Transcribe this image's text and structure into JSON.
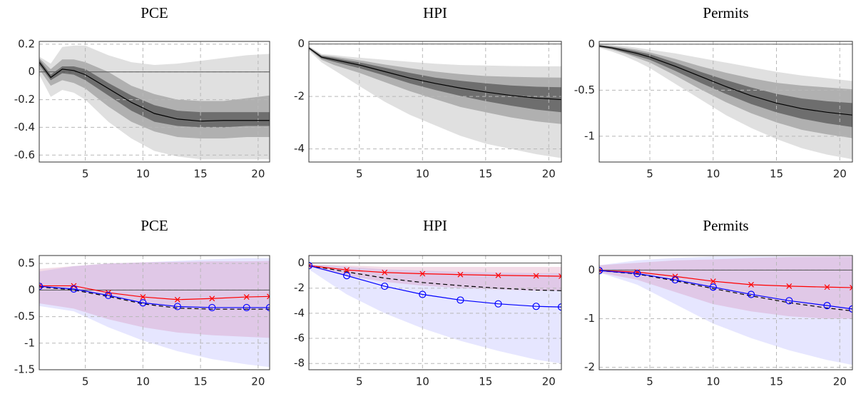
{
  "chart_data": [
    {
      "type": "line",
      "title": "PCE",
      "x": [
        1,
        2,
        3,
        4,
        5,
        7,
        9,
        11,
        13,
        15,
        17,
        19,
        21
      ],
      "xlim": [
        1,
        21
      ],
      "xticks": [
        5,
        10,
        15,
        20
      ],
      "ylim": [
        -0.65,
        0.22
      ],
      "yticks": [
        -0.6,
        -0.4,
        -0.2,
        0,
        0.2
      ],
      "grid": true,
      "zero_line": true,
      "bands": [
        {
          "color": "#e0e0e0",
          "opacity": 1,
          "lower": [
            -0.02,
            -0.18,
            -0.13,
            -0.15,
            -0.2,
            -0.36,
            -0.48,
            -0.57,
            -0.61,
            -0.63,
            -0.63,
            -0.63,
            -0.63
          ],
          "upper": [
            0.11,
            0.06,
            0.18,
            0.19,
            0.19,
            0.12,
            0.07,
            0.05,
            0.06,
            0.08,
            0.1,
            0.12,
            0.13
          ]
        },
        {
          "color": "#b0b0b0",
          "opacity": 1,
          "lower": [
            0.02,
            -0.1,
            -0.06,
            -0.08,
            -0.12,
            -0.25,
            -0.36,
            -0.43,
            -0.47,
            -0.48,
            -0.48,
            -0.47,
            -0.47
          ],
          "upper": [
            0.1,
            0.02,
            0.09,
            0.09,
            0.07,
            0,
            -0.1,
            -0.16,
            -0.2,
            -0.21,
            -0.21,
            -0.19,
            -0.17
          ]
        },
        {
          "color": "#6e6e6e",
          "opacity": 1,
          "lower": [
            0.05,
            -0.06,
            -0.01,
            -0.02,
            -0.06,
            -0.17,
            -0.28,
            -0.36,
            -0.39,
            -0.4,
            -0.4,
            -0.39,
            -0.39
          ],
          "upper": [
            0.09,
            -0.02,
            0.04,
            0.04,
            0.02,
            -0.08,
            -0.17,
            -0.24,
            -0.28,
            -0.29,
            -0.29,
            -0.29,
            -0.29
          ]
        }
      ],
      "series": [
        {
          "color": "#000000",
          "style": "solid",
          "values": [
            0.07,
            -0.04,
            0.02,
            0.01,
            -0.02,
            -0.12,
            -0.22,
            -0.3,
            -0.34,
            -0.355,
            -0.35,
            -0.35,
            -0.35
          ]
        }
      ]
    },
    {
      "type": "line",
      "title": "HPI",
      "x": [
        1,
        2,
        3,
        4,
        5,
        7,
        9,
        11,
        13,
        15,
        17,
        19,
        21
      ],
      "xlim": [
        1,
        21
      ],
      "xticks": [
        5,
        10,
        15,
        20
      ],
      "ylim": [
        -4.5,
        0.1
      ],
      "yticks": [
        -4,
        -2,
        0
      ],
      "grid": true,
      "zero_line": true,
      "bands": [
        {
          "color": "#e0e0e0",
          "opacity": 1,
          "lower": [
            -0.25,
            -0.7,
            -1,
            -1.3,
            -1.6,
            -2.2,
            -2.7,
            -3.1,
            -3.5,
            -3.8,
            -4,
            -4.2,
            -4.35
          ],
          "upper": [
            -0.08,
            -0.38,
            -0.42,
            -0.48,
            -0.52,
            -0.6,
            -0.68,
            -0.75,
            -0.8,
            -0.82,
            -0.84,
            -0.85,
            -0.85
          ]
        },
        {
          "color": "#b0b0b0",
          "opacity": 1,
          "lower": [
            -0.2,
            -0.6,
            -0.8,
            -0.95,
            -1.1,
            -1.45,
            -1.8,
            -2.1,
            -2.4,
            -2.6,
            -2.8,
            -2.95,
            -3.05
          ],
          "upper": [
            -0.1,
            -0.42,
            -0.48,
            -0.55,
            -0.62,
            -0.78,
            -0.92,
            -1.05,
            -1.15,
            -1.22,
            -1.25,
            -1.27,
            -1.28
          ]
        },
        {
          "color": "#6e6e6e",
          "opacity": 1,
          "lower": [
            -0.18,
            -0.55,
            -0.68,
            -0.8,
            -0.92,
            -1.2,
            -1.5,
            -1.75,
            -1.98,
            -2.18,
            -2.35,
            -2.5,
            -2.6
          ],
          "upper": [
            -0.12,
            -0.45,
            -0.53,
            -0.62,
            -0.7,
            -0.9,
            -1.1,
            -1.28,
            -1.4,
            -1.5,
            -1.58,
            -1.63,
            -1.65
          ]
        }
      ],
      "series": [
        {
          "color": "#000000",
          "style": "solid",
          "values": [
            -0.15,
            -0.5,
            -0.6,
            -0.7,
            -0.8,
            -1.05,
            -1.3,
            -1.5,
            -1.68,
            -1.83,
            -1.96,
            -2.06,
            -2.12
          ]
        }
      ]
    },
    {
      "type": "line",
      "title": "Permits",
      "x": [
        1,
        2,
        3,
        4,
        5,
        7,
        9,
        11,
        13,
        15,
        17,
        19,
        21
      ],
      "xlim": [
        1,
        21
      ],
      "xticks": [
        5,
        10,
        15,
        20
      ],
      "ylim": [
        -1.28,
        0.03
      ],
      "yticks": [
        -1,
        -0.5,
        0
      ],
      "grid": true,
      "zero_line": true,
      "bands": [
        {
          "color": "#e0e0e0",
          "opacity": 1,
          "lower": [
            -0.04,
            -0.08,
            -0.13,
            -0.19,
            -0.26,
            -0.43,
            -0.6,
            -0.77,
            -0.91,
            -1.03,
            -1.13,
            -1.2,
            -1.25
          ],
          "upper": [
            0,
            -0.01,
            -0.02,
            -0.04,
            -0.06,
            -0.1,
            -0.15,
            -0.2,
            -0.25,
            -0.3,
            -0.34,
            -0.37,
            -0.4
          ]
        },
        {
          "color": "#b0b0b0",
          "opacity": 1,
          "lower": [
            -0.03,
            -0.06,
            -0.1,
            -0.15,
            -0.2,
            -0.34,
            -0.49,
            -0.63,
            -0.75,
            -0.85,
            -0.93,
            -0.98,
            -1.02
          ],
          "upper": [
            -0.01,
            -0.02,
            -0.04,
            -0.06,
            -0.09,
            -0.16,
            -0.24,
            -0.31,
            -0.37,
            -0.42,
            -0.45,
            -0.47,
            -0.49
          ]
        },
        {
          "color": "#6e6e6e",
          "opacity": 1,
          "lower": [
            -0.03,
            -0.05,
            -0.09,
            -0.13,
            -0.17,
            -0.29,
            -0.42,
            -0.54,
            -0.65,
            -0.74,
            -0.81,
            -0.86,
            -0.9
          ],
          "upper": [
            -0.01,
            -0.03,
            -0.05,
            -0.08,
            -0.11,
            -0.2,
            -0.3,
            -0.39,
            -0.47,
            -0.54,
            -0.59,
            -0.62,
            -0.64
          ]
        }
      ],
      "series": [
        {
          "color": "#000000",
          "style": "solid",
          "values": [
            -0.02,
            -0.04,
            -0.07,
            -0.1,
            -0.14,
            -0.24,
            -0.35,
            -0.46,
            -0.56,
            -0.64,
            -0.7,
            -0.74,
            -0.77
          ]
        }
      ]
    },
    {
      "type": "line",
      "title": "PCE",
      "x": [
        1,
        4,
        7,
        10,
        13,
        16,
        19,
        21
      ],
      "xlim": [
        1,
        21
      ],
      "xticks": [
        5,
        10,
        15,
        20
      ],
      "ylim": [
        -1.5,
        0.65
      ],
      "yticks": [
        -1.5,
        -1,
        -0.5,
        0,
        0.5
      ],
      "grid": true,
      "zero_line": true,
      "bands": [
        {
          "color": "#5a5aff",
          "opacity": 0.15,
          "lower": [
            -0.3,
            -0.4,
            -0.7,
            -0.95,
            -1.15,
            -1.3,
            -1.4,
            -1.45
          ],
          "upper": [
            0.35,
            0.45,
            0.5,
            0.52,
            0.55,
            0.58,
            0.6,
            0.6
          ]
        },
        {
          "color": "#d070a0",
          "opacity": 0.25,
          "lower": [
            -0.25,
            -0.35,
            -0.55,
            -0.7,
            -0.8,
            -0.85,
            -0.88,
            -0.9
          ],
          "upper": [
            0.4,
            0.45,
            0.5,
            0.52,
            0.53,
            0.54,
            0.54,
            0.55
          ]
        }
      ],
      "series": [
        {
          "color": "#000000",
          "style": "dashed",
          "values": [
            0.06,
            0,
            -0.12,
            -0.26,
            -0.34,
            -0.36,
            -0.36,
            -0.36
          ]
        },
        {
          "color": "#ff0000",
          "style": "solid",
          "marker": "x",
          "values": [
            0.08,
            0.08,
            -0.05,
            -0.13,
            -0.18,
            -0.16,
            -0.13,
            -0.12
          ]
        },
        {
          "color": "#0000ff",
          "style": "solid",
          "marker": "o",
          "values": [
            0.07,
            0.02,
            -0.1,
            -0.24,
            -0.31,
            -0.33,
            -0.33,
            -0.33
          ]
        }
      ]
    },
    {
      "type": "line",
      "title": "HPI",
      "x": [
        1,
        4,
        7,
        10,
        13,
        16,
        19,
        21
      ],
      "xlim": [
        1,
        21
      ],
      "xticks": [
        5,
        10,
        15,
        20
      ],
      "ylim": [
        -8.5,
        0.6
      ],
      "yticks": [
        -8,
        -6,
        -4,
        -2,
        0
      ],
      "grid": true,
      "zero_line": true,
      "bands": [
        {
          "color": "#5a5aff",
          "opacity": 0.15,
          "lower": [
            -0.5,
            -2.5,
            -4,
            -5.2,
            -6.2,
            -7,
            -7.7,
            -8
          ],
          "upper": [
            -0.1,
            -0.3,
            -0.5,
            -0.6,
            -0.7,
            -0.75,
            -0.8,
            -0.8
          ]
        },
        {
          "color": "#d070a0",
          "opacity": 0.25,
          "lower": [
            -0.3,
            -1,
            -1.5,
            -1.8,
            -2,
            -2.1,
            -2.2,
            -2.2
          ],
          "upper": [
            -0.1,
            -0.2,
            -0.3,
            -0.3,
            -0.3,
            -0.3,
            -0.3,
            -0.3
          ]
        }
      ],
      "series": [
        {
          "color": "#000000",
          "style": "dashed",
          "values": [
            -0.2,
            -0.7,
            -1.2,
            -1.55,
            -1.8,
            -2,
            -2.15,
            -2.2
          ]
        },
        {
          "color": "#ff0000",
          "style": "solid",
          "marker": "x",
          "values": [
            -0.2,
            -0.55,
            -0.75,
            -0.85,
            -0.92,
            -0.98,
            -1.02,
            -1.05
          ]
        },
        {
          "color": "#0000ff",
          "style": "solid",
          "marker": "o",
          "values": [
            -0.2,
            -1,
            -1.85,
            -2.5,
            -2.95,
            -3.25,
            -3.45,
            -3.5
          ]
        }
      ]
    },
    {
      "type": "line",
      "title": "Permits",
      "x": [
        1,
        4,
        7,
        10,
        13,
        16,
        19,
        21
      ],
      "xlim": [
        1,
        21
      ],
      "xticks": [
        5,
        10,
        15,
        20
      ],
      "ylim": [
        -2.05,
        0.3
      ],
      "yticks": [
        -2,
        -1,
        0
      ],
      "grid": true,
      "zero_line": true,
      "bands": [
        {
          "color": "#5a5aff",
          "opacity": 0.15,
          "lower": [
            -0.05,
            -0.3,
            -0.7,
            -1.1,
            -1.4,
            -1.65,
            -1.85,
            -1.95
          ],
          "upper": [
            0.1,
            0.2,
            0.25,
            0.28,
            0.28,
            0.28,
            0.28,
            0.28
          ]
        },
        {
          "color": "#d070a0",
          "opacity": 0.25,
          "lower": [
            -0.05,
            -0.2,
            -0.45,
            -0.7,
            -0.85,
            -0.95,
            -1,
            -1
          ],
          "upper": [
            0.1,
            0.15,
            0.2,
            0.22,
            0.25,
            0.27,
            0.28,
            0.28
          ]
        }
      ],
      "series": [
        {
          "color": "#000000",
          "style": "dashed",
          "values": [
            -0.01,
            -0.08,
            -0.22,
            -0.38,
            -0.53,
            -0.67,
            -0.78,
            -0.84
          ]
        },
        {
          "color": "#ff0000",
          "style": "solid",
          "marker": "x",
          "values": [
            -0.01,
            -0.04,
            -0.13,
            -0.23,
            -0.3,
            -0.33,
            -0.35,
            -0.36
          ]
        },
        {
          "color": "#0000ff",
          "style": "solid",
          "marker": "o",
          "values": [
            -0.01,
            -0.07,
            -0.2,
            -0.35,
            -0.5,
            -0.63,
            -0.73,
            -0.8
          ]
        }
      ]
    }
  ]
}
